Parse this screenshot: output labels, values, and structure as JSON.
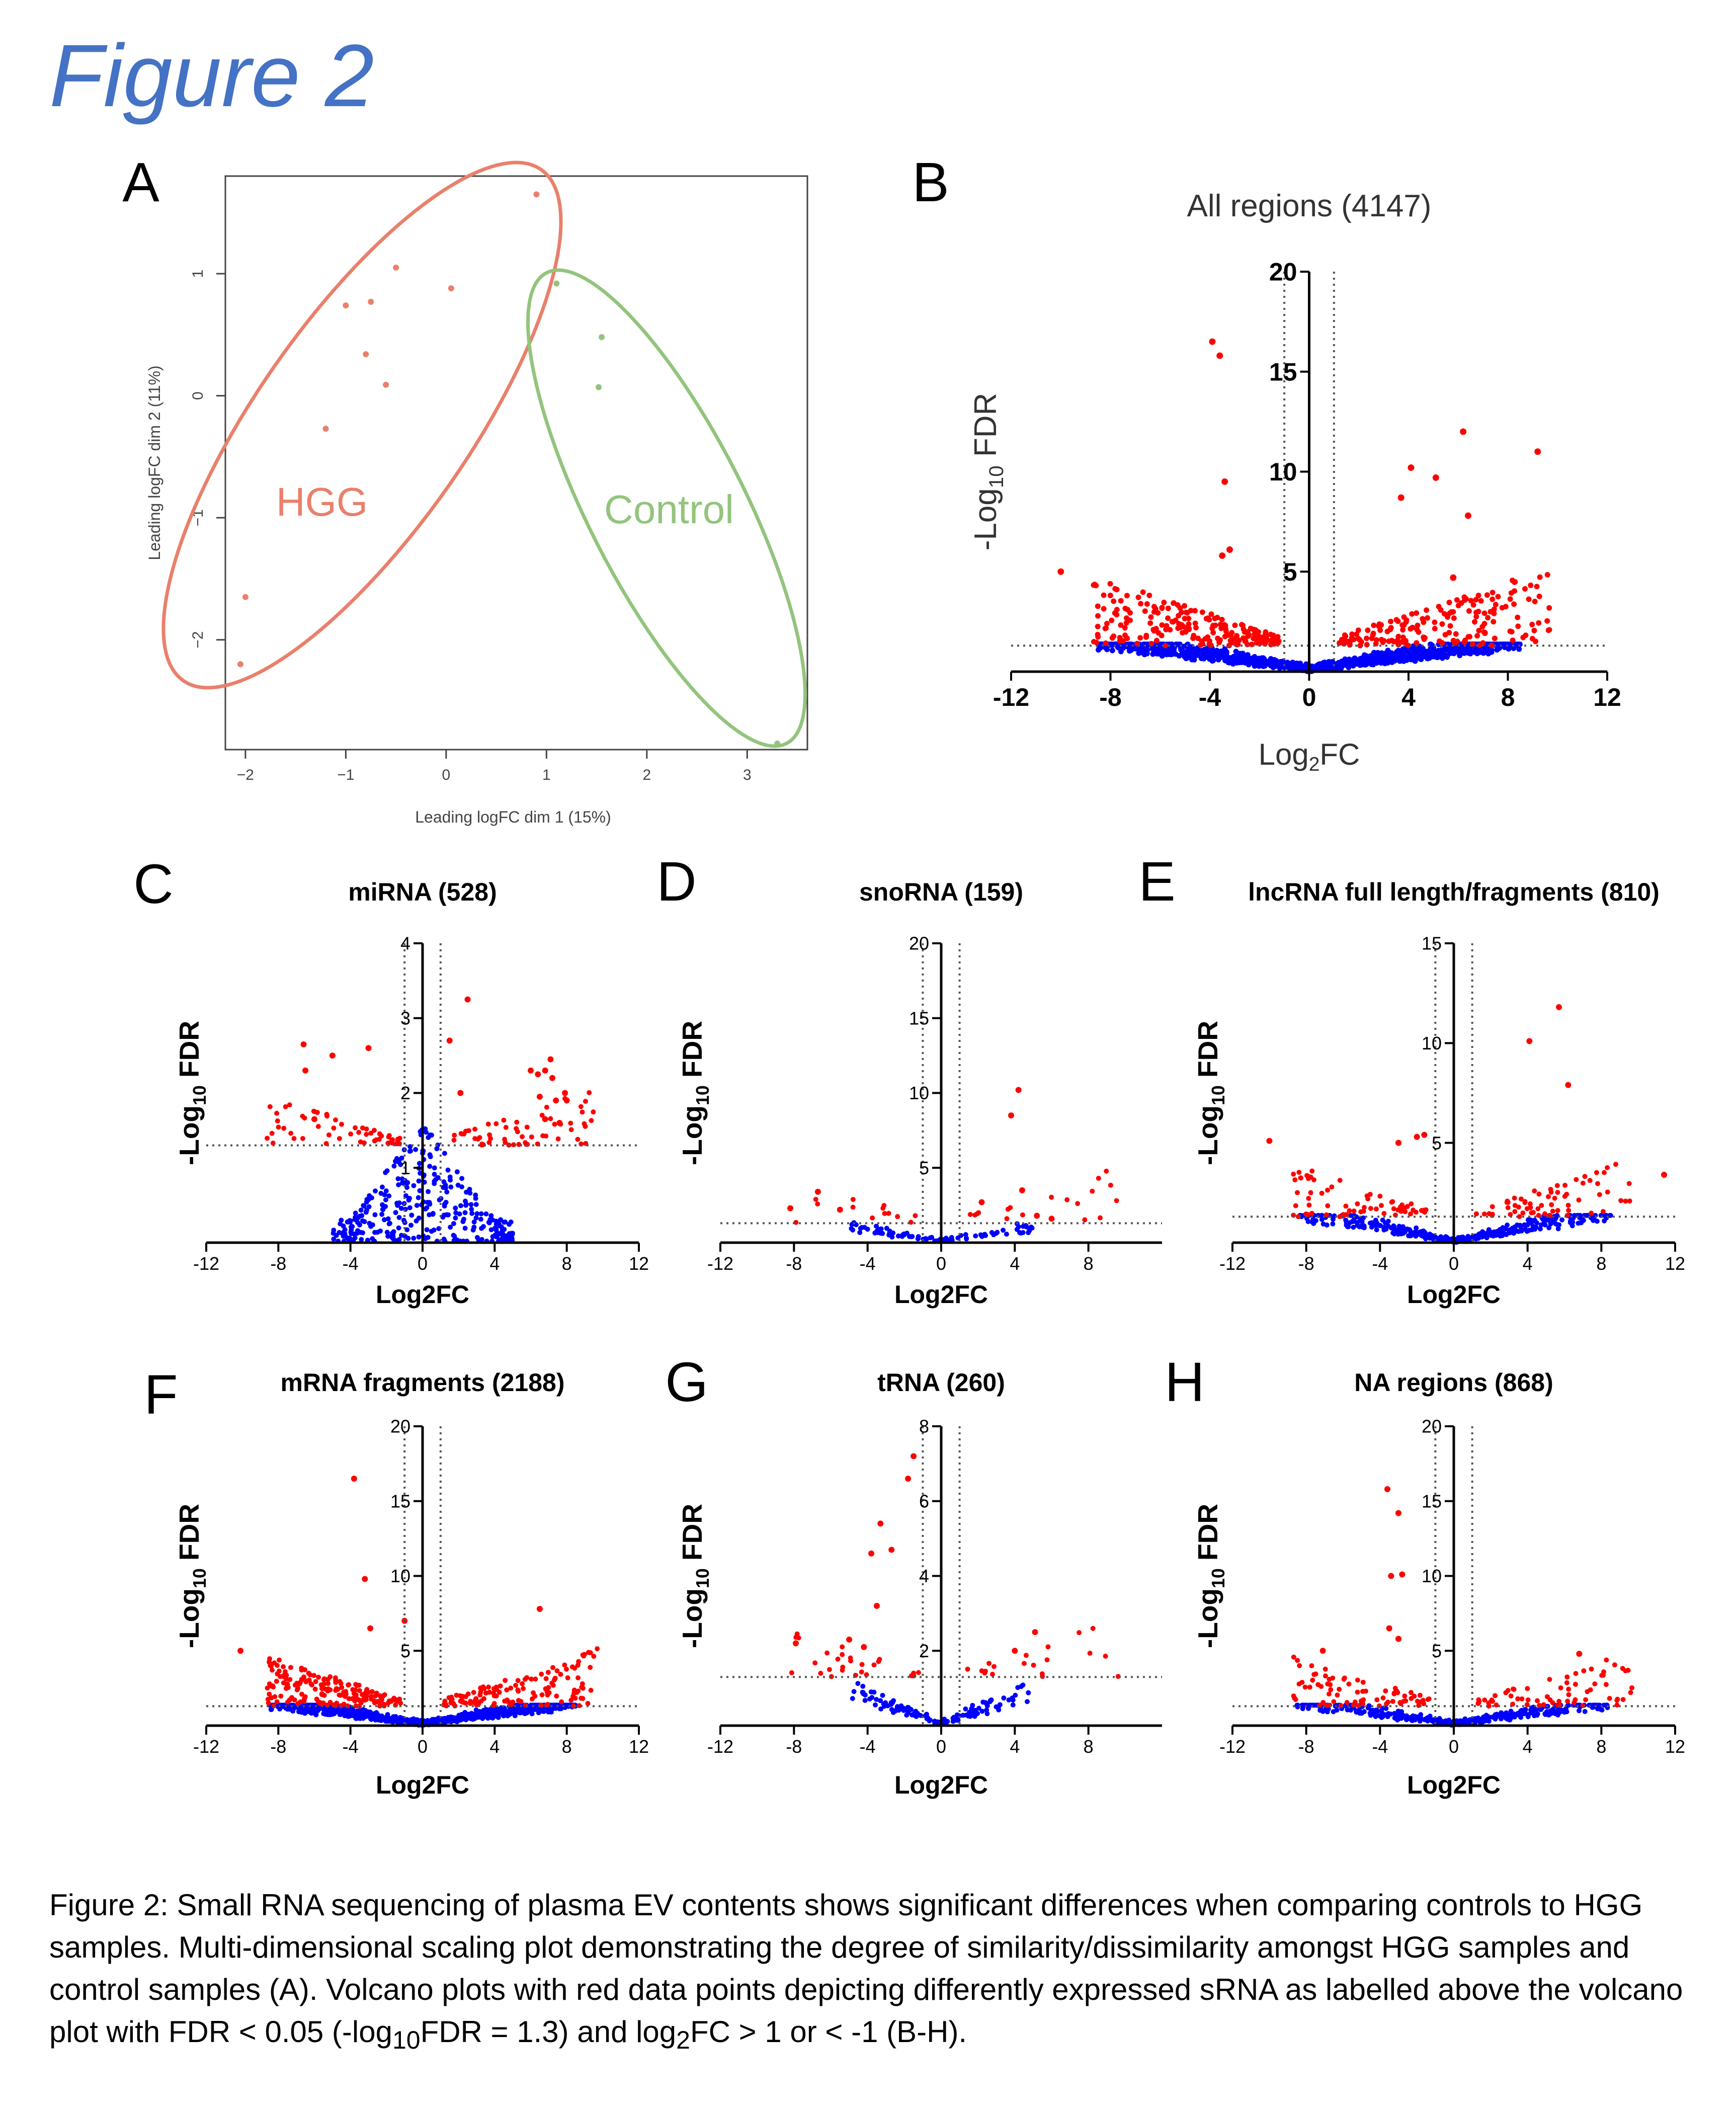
{
  "figure_title": "Figure 2",
  "caption": {
    "p1": "Figure 2: Small RNA sequencing of plasma EV contents shows significant differences when comparing controls to HGG samples. Multi-dimensional scaling plot demonstrating the degree of similarity/dissimilarity amongst HGG samples and control samples (A). Volcano plots with red data points depicting differently expressed sRNA as labelled above the volcano plot with FDR < 0.05 (-log",
    "sub1": "10",
    "p2": "FDR = 1.3) and log",
    "sub2": "2",
    "p3": "FC > 1 or < -1 (B-H)."
  },
  "colors": {
    "up": "#ff0000",
    "ns": "#0000ff",
    "hgg": "#e9806b",
    "control": "#93c47d",
    "mds_hgg_point": "#e9806b",
    "mds_control_point": "#93c47d"
  },
  "chart_data": [
    {
      "panel": "A",
      "type": "scatter",
      "xlabel": "Leading logFC dim 1 (15%)",
      "ylabel": "Leading logFC dim 2 (11%)",
      "xlim": [
        -2.2,
        3.6
      ],
      "ylim": [
        -2.9,
        1.8
      ],
      "xticks": [
        -2,
        -1,
        0,
        1,
        2,
        3
      ],
      "yticks": [
        -2,
        -1,
        0,
        1
      ],
      "groups": [
        {
          "name": "HGG",
          "points": [
            [
              0.9,
              1.65
            ],
            [
              -0.5,
              1.05
            ],
            [
              0.05,
              0.88
            ],
            [
              -0.75,
              0.77
            ],
            [
              -1.0,
              0.74
            ],
            [
              -0.8,
              0.34
            ],
            [
              -0.6,
              0.09
            ],
            [
              -1.2,
              -0.27
            ],
            [
              -2.0,
              -1.65
            ],
            [
              -2.05,
              -2.2
            ]
          ]
        },
        {
          "name": "Control",
          "points": [
            [
              1.1,
              0.92
            ],
            [
              1.55,
              0.48
            ],
            [
              1.52,
              0.07
            ],
            [
              3.3,
              -2.85
            ]
          ]
        }
      ]
    },
    {
      "panel": "B",
      "type": "scatter",
      "title": "All regions (4147)",
      "xlabel": "Log2FC",
      "ylabel": "-Log10 FDR",
      "xlim": [
        -12,
        12
      ],
      "ylim": [
        0,
        20
      ],
      "xticks": [
        -12,
        -8,
        -4,
        0,
        4,
        8,
        12
      ],
      "yticks": [
        5,
        10,
        15,
        20
      ],
      "threshold_y": 1.3,
      "threshold_x": [
        -1,
        1
      ],
      "total": 4147,
      "labeled_points": [
        [
          -3.9,
          16.5
        ],
        [
          -3.6,
          15.8
        ],
        [
          -3.4,
          9.5
        ],
        [
          -3.5,
          5.8
        ],
        [
          -3.2,
          6.1
        ],
        [
          4.1,
          10.2
        ],
        [
          5.1,
          9.7
        ],
        [
          3.7,
          8.7
        ],
        [
          6.2,
          12.0
        ],
        [
          6.4,
          7.8
        ],
        [
          9.2,
          11.0
        ],
        [
          -10.0,
          5.0
        ],
        [
          5.8,
          4.7
        ]
      ]
    },
    {
      "panel": "C",
      "type": "scatter",
      "title": "miRNA (528)",
      "xlabel": "Log2FC",
      "ylabel": "-Log10 FDR",
      "xlim": [
        -12,
        12
      ],
      "ylim": [
        0,
        4
      ],
      "xticks": [
        -12,
        -8,
        -4,
        0,
        4,
        8,
        12
      ],
      "yticks": [
        1,
        2,
        3,
        4
      ],
      "threshold_y": 1.3,
      "threshold_x": [
        -1,
        1
      ],
      "total": 528,
      "labeled_points": [
        [
          2.5,
          3.25
        ],
        [
          -6.6,
          2.65
        ],
        [
          -5.0,
          2.5
        ],
        [
          -6.5,
          2.3
        ],
        [
          -3.0,
          2.6
        ],
        [
          -6.0,
          1.65
        ],
        [
          6.0,
          2.3
        ],
        [
          6.8,
          2.3
        ],
        [
          7.1,
          2.45
        ],
        [
          6.4,
          2.25
        ],
        [
          7.2,
          2.2
        ],
        [
          7.9,
          2.0
        ],
        [
          7.4,
          1.9
        ],
        [
          6.5,
          1.95
        ],
        [
          8.0,
          1.9
        ],
        [
          6.8,
          1.65
        ],
        [
          7.6,
          1.6
        ],
        [
          1.5,
          2.7
        ],
        [
          2.1,
          2.0
        ]
      ]
    },
    {
      "panel": "D",
      "type": "scatter",
      "title": "snoRNA (159)",
      "xlabel": "Log2FC",
      "ylabel": "-Log10 FDR",
      "xlim": [
        -12,
        12
      ],
      "ylim": [
        0,
        20
      ],
      "xticks": [
        -12,
        -8,
        -4,
        0,
        4,
        8
      ],
      "yticks": [
        5,
        10,
        15,
        20
      ],
      "threshold_y": 1.3,
      "threshold_x": [
        -1,
        1
      ],
      "total": 159,
      "labeled_points": [
        [
          4.2,
          10.2
        ],
        [
          3.8,
          8.5
        ],
        [
          4.4,
          3.5
        ],
        [
          2.2,
          2.7
        ],
        [
          -6.7,
          3.4
        ],
        [
          -8.2,
          2.3
        ],
        [
          -5.5,
          2.2
        ],
        [
          5.2,
          1.8
        ],
        [
          6.0,
          1.6
        ]
      ]
    },
    {
      "panel": "E",
      "type": "scatter",
      "title": "lncRNA full length/fragments (810)",
      "xlabel": "Log2FC",
      "ylabel": "-Log10 FDR",
      "xlim": [
        -12,
        12
      ],
      "ylim": [
        0,
        15
      ],
      "xticks": [
        -12,
        -8,
        -4,
        0,
        4,
        8,
        12
      ],
      "yticks": [
        5,
        10,
        15
      ],
      "threshold_y": 1.3,
      "threshold_x": [
        -1,
        1
      ],
      "total": 810,
      "labeled_points": [
        [
          5.7,
          11.8
        ],
        [
          4.1,
          10.1
        ],
        [
          6.2,
          7.9
        ],
        [
          -10.0,
          5.1
        ],
        [
          -2.0,
          5.3
        ],
        [
          -1.6,
          5.4
        ],
        [
          11.4,
          3.4
        ],
        [
          -3.0,
          5.0
        ]
      ]
    },
    {
      "panel": "F",
      "type": "scatter",
      "title": "mRNA fragments (2188)",
      "xlabel": "Log2FC",
      "ylabel": "-Log10 FDR",
      "xlim": [
        -12,
        12
      ],
      "ylim": [
        0,
        20
      ],
      "xticks": [
        -12,
        -8,
        -4,
        0,
        4,
        8,
        12
      ],
      "yticks": [
        5,
        10,
        15,
        20
      ],
      "threshold_y": 1.3,
      "threshold_x": [
        -1,
        1
      ],
      "total": 2188,
      "labeled_points": [
        [
          -3.8,
          16.5
        ],
        [
          -3.2,
          9.8
        ],
        [
          -2.9,
          6.5
        ],
        [
          -1.0,
          7.0
        ],
        [
          6.5,
          7.8
        ],
        [
          -10.1,
          5.0
        ]
      ]
    },
    {
      "panel": "G",
      "type": "scatter",
      "title": "tRNA (260)",
      "xlabel": "Log2FC",
      "ylabel": "-Log10 FDR",
      "xlim": [
        -12,
        12
      ],
      "ylim": [
        0,
        8
      ],
      "xticks": [
        -12,
        -8,
        -4,
        0,
        4,
        8
      ],
      "yticks": [
        2,
        4,
        6,
        8
      ],
      "threshold_y": 1.3,
      "threshold_x": [
        -1,
        1
      ],
      "total": 260,
      "labeled_points": [
        [
          -1.5,
          7.2
        ],
        [
          -1.8,
          6.6
        ],
        [
          -3.3,
          5.4
        ],
        [
          -3.8,
          4.6
        ],
        [
          -2.7,
          4.7
        ],
        [
          -7.9,
          2.2
        ],
        [
          -5.0,
          2.3
        ],
        [
          -4.2,
          2.1
        ],
        [
          -3.5,
          3.2
        ],
        [
          5.1,
          2.5
        ],
        [
          4.0,
          2.0
        ]
      ]
    },
    {
      "panel": "H",
      "type": "scatter",
      "title": "NA regions (868)",
      "xlabel": "Log2FC",
      "ylabel": "-Log10 FDR",
      "xlim": [
        -12,
        12
      ],
      "ylim": [
        0,
        20
      ],
      "xticks": [
        -12,
        -8,
        -4,
        0,
        4,
        8,
        12
      ],
      "yticks": [
        5,
        10,
        15,
        20
      ],
      "threshold_y": 1.3,
      "threshold_x": [
        -1,
        1
      ],
      "total": 868,
      "labeled_points": [
        [
          -3.6,
          15.8
        ],
        [
          -3.0,
          14.2
        ],
        [
          -3.4,
          10.0
        ],
        [
          -2.8,
          10.1
        ],
        [
          -3.5,
          6.5
        ],
        [
          -3.0,
          5.8
        ],
        [
          -7.1,
          5.0
        ],
        [
          6.8,
          4.8
        ]
      ]
    }
  ]
}
